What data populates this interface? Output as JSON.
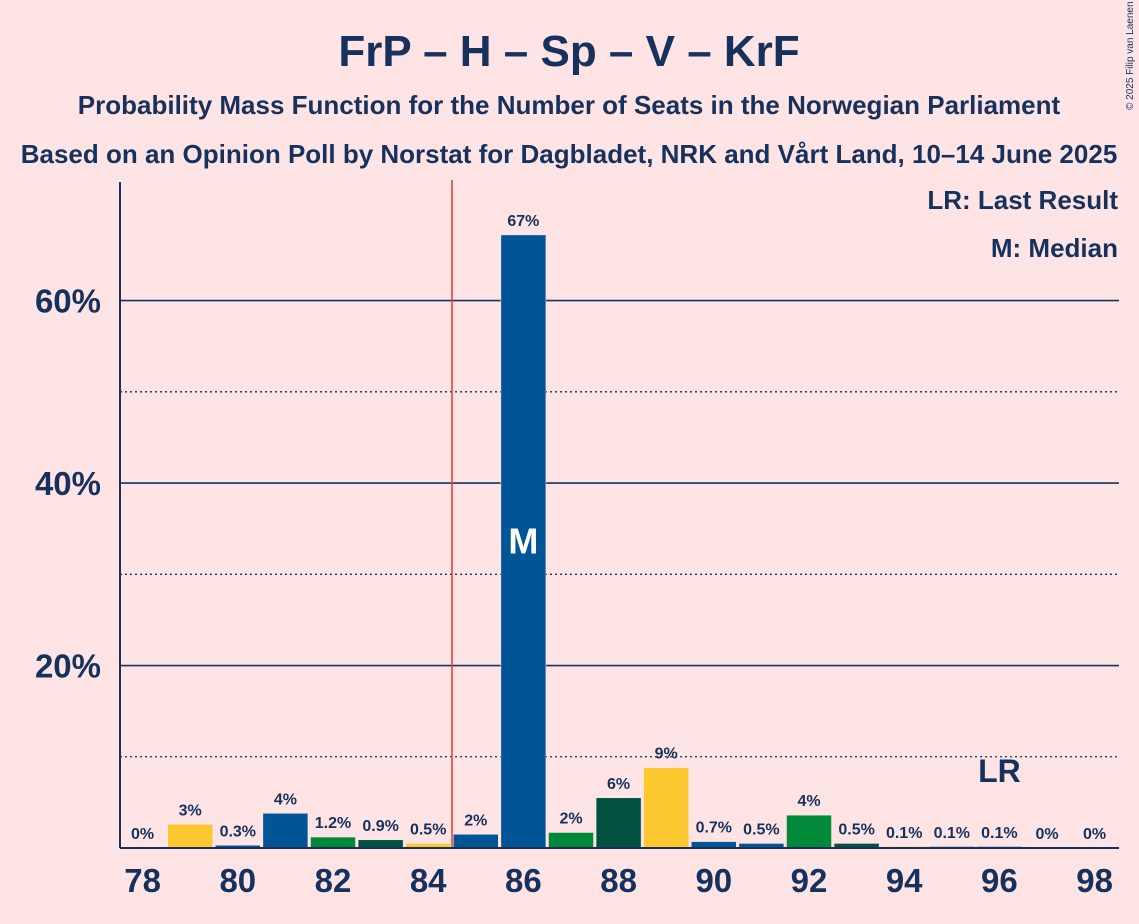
{
  "header": {
    "title": "FrP – H – Sp – V – KrF",
    "subtitle": "Probability Mass Function for the Number of Seats in the Norwegian Parliament",
    "source": "Based on an Opinion Poll by Norstat for Dagbladet, NRK and Vårt Land, 10–14 June 2025",
    "copyright": "© 2025 Filip van Laenen"
  },
  "legend": {
    "last_result": "LR: Last Result",
    "median": "M: Median"
  },
  "chart_data": {
    "type": "bar",
    "x": [
      78,
      79,
      80,
      81,
      82,
      83,
      84,
      85,
      86,
      87,
      88,
      89,
      90,
      91,
      92,
      93,
      94,
      95,
      96,
      97,
      98
    ],
    "values": [
      0,
      2.6,
      0.3,
      3.8,
      1.2,
      0.9,
      0.5,
      1.5,
      67.2,
      1.7,
      5.5,
      8.8,
      0.7,
      0.5,
      3.6,
      0.5,
      0.1,
      0.1,
      0.1,
      0,
      0
    ],
    "data_labels": [
      "0%",
      "3%",
      "0.3%",
      "4%",
      "1.2%",
      "0.9%",
      "0.5%",
      "2%",
      "67%",
      "2%",
      "6%",
      "9%",
      "0.7%",
      "0.5%",
      "4%",
      "0.5%",
      "0.1%",
      "0.1%",
      "0.1%",
      "0%",
      "0%"
    ],
    "bar_colors": [
      "#005596",
      "#FDC82F",
      "#005596",
      "#005596",
      "#008938",
      "#00513F",
      "#FDC82F",
      "#005596",
      "#005596",
      "#008938",
      "#00513F",
      "#FDC82F",
      "#005596",
      "#005596",
      "#008938",
      "#00513F",
      "#FDC82F",
      "#005596",
      "#005596",
      "#008938",
      "#00513F"
    ],
    "x_tick_labels": [
      "78",
      "80",
      "82",
      "84",
      "86",
      "88",
      "90",
      "92",
      "94",
      "96",
      "98"
    ],
    "y_tick_labels": [
      "20%",
      "40%",
      "60%"
    ],
    "y_major_ticks": [
      20,
      40,
      60
    ],
    "y_minor_ticks": [
      10,
      30,
      50
    ],
    "ylim": [
      0,
      73
    ],
    "majority_line_x": 84.5,
    "median_seat": 86,
    "median_marker": "M",
    "last_result_seat": 96,
    "last_result_marker": "LR",
    "colors": {
      "axis": "#16325C",
      "majority_line": "#E8382E",
      "background": "#FFE4E6"
    }
  }
}
